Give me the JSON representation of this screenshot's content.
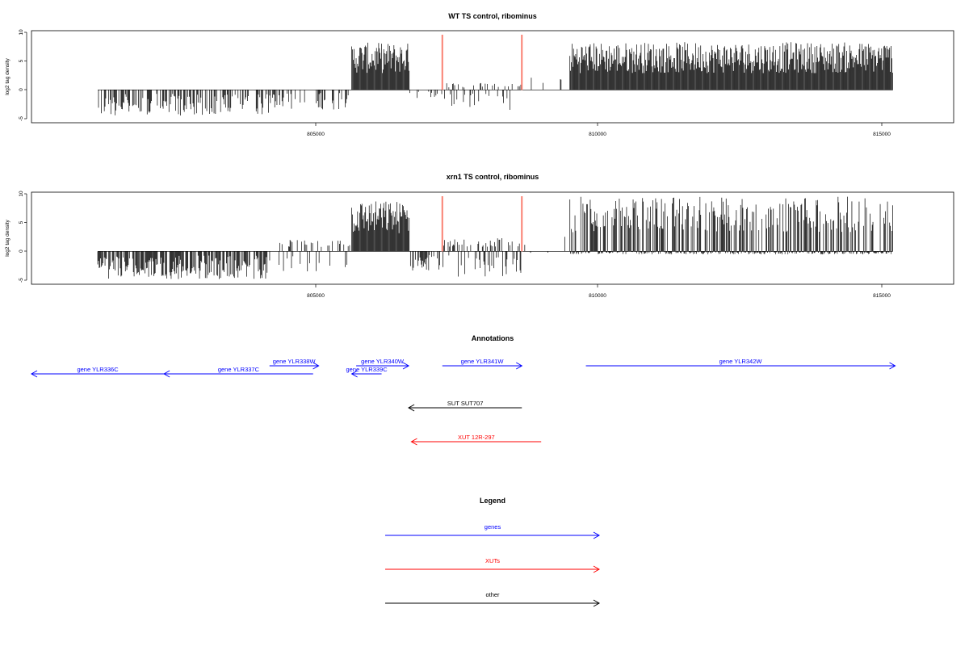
{
  "chart_data": [
    {
      "type": "bar",
      "title": "WT TS control, ribominus",
      "ylabel": "log2 tag density",
      "xlim": [
        800000,
        816700
      ],
      "ylim": [
        -5,
        10
      ],
      "xticks": [
        "805000",
        "810000",
        "815000"
      ],
      "yticks": [
        "-5",
        "0",
        "5",
        "10"
      ],
      "marker_x": [
        807440,
        808880
      ],
      "segments": [
        {
          "x0": 801200,
          "x1": 804300,
          "low": -4.5,
          "high": 0,
          "density": 0.55
        },
        {
          "x0": 804300,
          "x1": 805800,
          "low": -3.5,
          "high": 0,
          "density": 0.3
        },
        {
          "x0": 805800,
          "x1": 806850,
          "low": 0,
          "high": 8.2,
          "density": 1
        },
        {
          "x0": 806850,
          "x1": 807440,
          "low": -2,
          "high": 0,
          "density": 0.25
        },
        {
          "x0": 807440,
          "x1": 808880,
          "low": -3.8,
          "high": 1.2,
          "density": 0.35
        },
        {
          "x0": 808880,
          "x1": 809750,
          "low": 0,
          "high": 2.5,
          "density": 0.05
        },
        {
          "x0": 809750,
          "x1": 815600,
          "low": 0,
          "high": 8.3,
          "density": 1
        }
      ]
    },
    {
      "type": "bar",
      "title": "xrn1 TS control, ribominus",
      "ylabel": "log2 tag density",
      "xlim": [
        800000,
        816700
      ],
      "ylim": [
        -5,
        10
      ],
      "xticks": [
        "805000",
        "810000",
        "815000"
      ],
      "yticks": [
        "-5",
        "0",
        "5",
        "10"
      ],
      "marker_x": [
        807440,
        808880
      ],
      "segments": [
        {
          "x0": 801200,
          "x1": 804300,
          "low": -4.8,
          "high": 0,
          "density": 0.75
        },
        {
          "x0": 804300,
          "x1": 805800,
          "low": -3.5,
          "high": 2,
          "density": 0.35
        },
        {
          "x0": 805800,
          "x1": 806850,
          "low": 0,
          "high": 8.8,
          "density": 1
        },
        {
          "x0": 806850,
          "x1": 807440,
          "low": -3.5,
          "high": 0,
          "density": 0.6
        },
        {
          "x0": 807440,
          "x1": 808880,
          "low": -4.5,
          "high": 2.3,
          "density": 0.6
        },
        {
          "x0": 808880,
          "x1": 809750,
          "low": -0.5,
          "high": 2.8,
          "density": 0.08
        },
        {
          "x0": 809750,
          "x1": 815600,
          "low": -0.5,
          "high": 9.5,
          "density": 1
        }
      ]
    }
  ],
  "annotations": {
    "title": "Annotations",
    "features": [
      {
        "label": "gene YLR336C",
        "start": 800000,
        "end": 802400,
        "strand": "-",
        "row": 2,
        "color": "#0000ff"
      },
      {
        "label": "gene YLR337C",
        "start": 802400,
        "end": 805100,
        "strand": "-",
        "row": 2,
        "color": "#0000ff"
      },
      {
        "label": "gene YLR338W",
        "start": 804310,
        "end": 805200,
        "strand": "+",
        "row": 1,
        "color": "#0000ff"
      },
      {
        "label": "gene YLR339C",
        "start": 805800,
        "end": 806340,
        "strand": "-",
        "row": 2,
        "color": "#0000ff"
      },
      {
        "label": "gene YLR340W",
        "start": 805880,
        "end": 806830,
        "strand": "+",
        "row": 1,
        "color": "#0000ff"
      },
      {
        "label": "gene YLR341W",
        "start": 807440,
        "end": 808880,
        "strand": "+",
        "row": 1,
        "color": "#0000ff"
      },
      {
        "label": "gene YLR342W",
        "start": 810040,
        "end": 815640,
        "strand": "+",
        "row": 1,
        "color": "#0000ff"
      },
      {
        "label": "SUT SUT707",
        "start": 806830,
        "end": 808880,
        "strand": "-",
        "row": 3,
        "color": "#000000"
      },
      {
        "label": "XUT 12R-297",
        "start": 806880,
        "end": 809230,
        "strand": "-",
        "row": 4,
        "color": "#ff0000"
      }
    ]
  },
  "legend": {
    "title": "Legend",
    "items": [
      {
        "label": "genes",
        "color": "#0000ff"
      },
      {
        "label": "XUTs",
        "color": "#ff0000"
      },
      {
        "label": "other",
        "color": "#000000"
      }
    ]
  },
  "colors": {
    "marker": "#fa8072",
    "data": "#000000"
  }
}
